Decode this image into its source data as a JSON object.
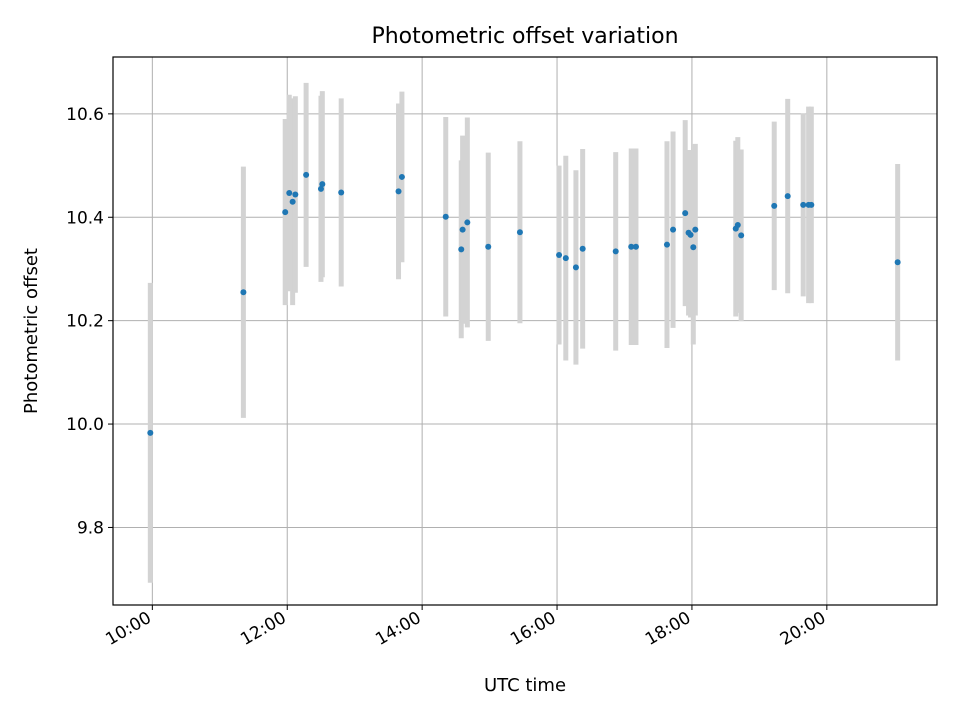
{
  "chart_data": {
    "type": "scatter",
    "title": "Photometric offset variation",
    "xlabel": "UTC time",
    "ylabel": "Photometric offset",
    "xlim": [
      9.4167,
      21.6333
    ],
    "ylim": [
      9.65,
      10.71
    ],
    "grid": true,
    "x_ticks": [
      {
        "value": 10,
        "label": "10:00"
      },
      {
        "value": 12,
        "label": "12:00"
      },
      {
        "value": 14,
        "label": "14:00"
      },
      {
        "value": 16,
        "label": "16:00"
      },
      {
        "value": 18,
        "label": "18:00"
      },
      {
        "value": 20,
        "label": "20:00"
      }
    ],
    "y_ticks": [
      {
        "value": 9.8,
        "label": "9.8"
      },
      {
        "value": 10.0,
        "label": "10.0"
      },
      {
        "value": 10.2,
        "label": "10.2"
      },
      {
        "value": 10.4,
        "label": "10.4"
      },
      {
        "value": 10.6,
        "label": "10.6"
      }
    ],
    "point_color": "#1f77b4",
    "errorbar_color": "#d3d3d3",
    "points": [
      {
        "t": 9.97,
        "y": 9.983,
        "err": 0.29
      },
      {
        "t": 11.35,
        "y": 10.255,
        "err": 0.243
      },
      {
        "t": 11.97,
        "y": 10.41,
        "err": 0.18
      },
      {
        "t": 12.03,
        "y": 10.447,
        "err": 0.19
      },
      {
        "t": 12.08,
        "y": 10.43,
        "err": 0.2
      },
      {
        "t": 12.12,
        "y": 10.444,
        "err": 0.19
      },
      {
        "t": 12.28,
        "y": 10.482,
        "err": 0.178
      },
      {
        "t": 12.5,
        "y": 10.455,
        "err": 0.18
      },
      {
        "t": 12.52,
        "y": 10.464,
        "err": 0.18
      },
      {
        "t": 12.8,
        "y": 10.448,
        "err": 0.182
      },
      {
        "t": 13.65,
        "y": 10.45,
        "err": 0.17
      },
      {
        "t": 13.7,
        "y": 10.478,
        "err": 0.165
      },
      {
        "t": 14.35,
        "y": 10.401,
        "err": 0.193
      },
      {
        "t": 14.58,
        "y": 10.338,
        "err": 0.172
      },
      {
        "t": 14.6,
        "y": 10.376,
        "err": 0.182
      },
      {
        "t": 14.67,
        "y": 10.39,
        "err": 0.203
      },
      {
        "t": 14.98,
        "y": 10.343,
        "err": 0.182
      },
      {
        "t": 15.45,
        "y": 10.371,
        "err": 0.176
      },
      {
        "t": 16.03,
        "y": 10.327,
        "err": 0.173
      },
      {
        "t": 16.13,
        "y": 10.321,
        "err": 0.198
      },
      {
        "t": 16.28,
        "y": 10.303,
        "err": 0.188
      },
      {
        "t": 16.38,
        "y": 10.339,
        "err": 0.193
      },
      {
        "t": 16.87,
        "y": 10.334,
        "err": 0.192
      },
      {
        "t": 17.1,
        "y": 10.343,
        "err": 0.19
      },
      {
        "t": 17.17,
        "y": 10.343,
        "err": 0.19
      },
      {
        "t": 17.63,
        "y": 10.347,
        "err": 0.2
      },
      {
        "t": 17.72,
        "y": 10.376,
        "err": 0.19
      },
      {
        "t": 17.9,
        "y": 10.408,
        "err": 0.18
      },
      {
        "t": 17.95,
        "y": 10.37,
        "err": 0.16
      },
      {
        "t": 17.98,
        "y": 10.366,
        "err": 0.16
      },
      {
        "t": 18.02,
        "y": 10.342,
        "err": 0.188
      },
      {
        "t": 18.05,
        "y": 10.376,
        "err": 0.166
      },
      {
        "t": 18.65,
        "y": 10.378,
        "err": 0.17
      },
      {
        "t": 18.68,
        "y": 10.385,
        "err": 0.17
      },
      {
        "t": 18.73,
        "y": 10.365,
        "err": 0.166
      },
      {
        "t": 19.22,
        "y": 10.422,
        "err": 0.163
      },
      {
        "t": 19.42,
        "y": 10.441,
        "err": 0.188
      },
      {
        "t": 19.65,
        "y": 10.424,
        "err": 0.177
      },
      {
        "t": 19.73,
        "y": 10.424,
        "err": 0.19
      },
      {
        "t": 19.77,
        "y": 10.424,
        "err": 0.19
      },
      {
        "t": 21.05,
        "y": 10.313,
        "err": 0.19
      }
    ]
  }
}
